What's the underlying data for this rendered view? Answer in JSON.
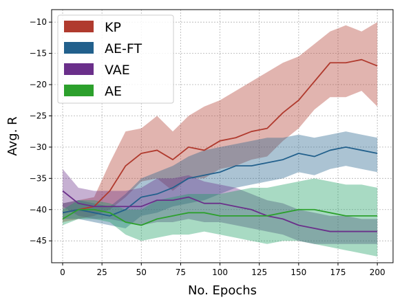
{
  "chart_data": {
    "type": "line",
    "xlabel": "No. Epochs",
    "ylabel": "Avg. R",
    "xlim": [
      -7,
      210
    ],
    "ylim": [
      -48.5,
      -8
    ],
    "xticks": [
      0,
      25,
      50,
      75,
      100,
      125,
      150,
      175,
      200
    ],
    "yticks": [
      -45,
      -40,
      -35,
      -30,
      -25,
      -20,
      -15,
      -10
    ],
    "grid": true,
    "legend_position": "top-left",
    "series": [
      {
        "name": "KP",
        "color": "#b03a2e",
        "x": [
          0,
          10,
          20,
          30,
          40,
          50,
          60,
          70,
          80,
          90,
          100,
          110,
          120,
          130,
          140,
          150,
          160,
          170,
          180,
          190,
          200
        ],
        "y": [
          -40.5,
          -40,
          -39.5,
          -37,
          -33,
          -31,
          -30.5,
          -32,
          -30,
          -30.5,
          -29,
          -28.5,
          -27.5,
          -27,
          -24.5,
          -22.5,
          -19.5,
          -16.5,
          -16.5,
          -16,
          -17
        ],
        "lower": [
          -42,
          -41.5,
          -41,
          -40,
          -38,
          -35.5,
          -35,
          -37,
          -35,
          -35,
          -33.5,
          -33,
          -32,
          -31.5,
          -29,
          -27,
          -24,
          -22,
          -22,
          -21,
          -23.5
        ],
        "upper": [
          -39,
          -38.5,
          -38,
          -32.5,
          -27.5,
          -27,
          -25,
          -27.5,
          -25,
          -23.5,
          -22.5,
          -21,
          -19.5,
          -18,
          -16.5,
          -15.5,
          -13.5,
          -11.5,
          -10.5,
          -11.5,
          -10
        ]
      },
      {
        "name": "AE-FT",
        "color": "#22608c",
        "x": [
          0,
          10,
          20,
          30,
          40,
          50,
          60,
          70,
          80,
          90,
          100,
          110,
          120,
          130,
          140,
          150,
          160,
          170,
          180,
          190,
          200
        ],
        "y": [
          -40.5,
          -40,
          -40.5,
          -41,
          -40,
          -38,
          -37.5,
          -36.5,
          -35,
          -34.5,
          -34,
          -33,
          -33,
          -32.5,
          -32,
          -31,
          -31.5,
          -30.5,
          -30,
          -30.5,
          -31
        ],
        "lower": [
          -41.5,
          -41.5,
          -42,
          -42.5,
          -43,
          -41,
          -40.5,
          -39.5,
          -39,
          -38.5,
          -37.5,
          -36.5,
          -36,
          -35.5,
          -35,
          -34,
          -34.5,
          -33.5,
          -33,
          -33.5,
          -34
        ],
        "upper": [
          -39,
          -38.5,
          -39,
          -39.5,
          -37.5,
          -35,
          -34,
          -33,
          -31.5,
          -30.5,
          -30,
          -29.5,
          -29,
          -28.5,
          -28.5,
          -28,
          -28.5,
          -28,
          -27.5,
          -28,
          -28.5
        ]
      },
      {
        "name": "VAE",
        "color": "#6a2f8a",
        "x": [
          0,
          10,
          20,
          30,
          40,
          50,
          60,
          70,
          80,
          90,
          100,
          110,
          120,
          130,
          140,
          150,
          160,
          170,
          180,
          190,
          200
        ],
        "y": [
          -37,
          -39,
          -39.5,
          -39.5,
          -39.5,
          -39.5,
          -38.5,
          -38.5,
          -38,
          -39,
          -39,
          -39.5,
          -40,
          -41,
          -41.5,
          -42.5,
          -43,
          -43.5,
          -43.5,
          -43.5,
          -43.5
        ],
        "lower": [
          -39.5,
          -41,
          -41.5,
          -41.5,
          -42,
          -42.5,
          -42,
          -42,
          -41.5,
          -42,
          -42,
          -42.5,
          -43,
          -43.5,
          -44,
          -45,
          -45.5,
          -45.5,
          -45.5,
          -45.5,
          -45.5
        ],
        "upper": [
          -33.5,
          -36.5,
          -37,
          -37,
          -37,
          -36.5,
          -35,
          -35,
          -34.5,
          -35.5,
          -36,
          -36.5,
          -37.5,
          -38.5,
          -39,
          -40,
          -40.5,
          -41,
          -41,
          -41.5,
          -41.5
        ]
      },
      {
        "name": "AE",
        "color": "#2ca02c",
        "fill": "#1a9e60",
        "x": [
          0,
          10,
          20,
          30,
          40,
          50,
          60,
          70,
          80,
          90,
          100,
          110,
          120,
          130,
          140,
          150,
          160,
          170,
          180,
          190,
          200
        ],
        "y": [
          -41.5,
          -40,
          -40,
          -40.5,
          -42,
          -42.5,
          -41.5,
          -41,
          -40.5,
          -40.5,
          -41,
          -41,
          -41,
          -41,
          -40.5,
          -40,
          -40,
          -40.5,
          -41,
          -41,
          -41
        ],
        "lower": [
          -42.5,
          -41.5,
          -41.5,
          -42,
          -44,
          -45,
          -44.5,
          -44,
          -44,
          -43.5,
          -44,
          -44.5,
          -45,
          -45.5,
          -45,
          -45,
          -45.5,
          -46,
          -46.5,
          -47,
          -47.5
        ],
        "upper": [
          -40,
          -38.5,
          -38.5,
          -39,
          -40,
          -40,
          -38.5,
          -38,
          -37.5,
          -37.5,
          -37.5,
          -37,
          -36.5,
          -36.5,
          -36,
          -35.5,
          -35,
          -35.5,
          -36,
          -36,
          -36.5
        ]
      }
    ]
  }
}
